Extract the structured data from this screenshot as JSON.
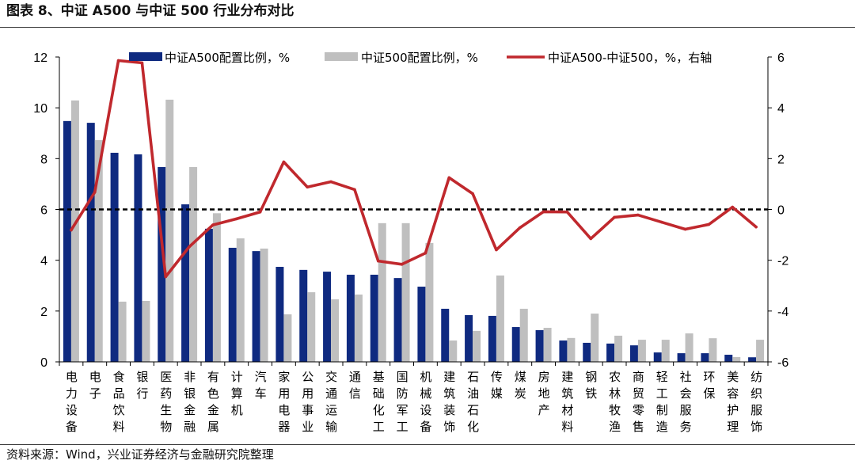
{
  "chart_data": {
    "type": "bar",
    "title": "图表 8、中证 A500 与中证 500 行业分布对比",
    "categories": [
      "电力设备",
      "电子",
      "食品饮料",
      "银行",
      "医药生物",
      "非银金融",
      "有色金属",
      "计算机",
      "汽车",
      "家用电器",
      "公用事业",
      "交通运输",
      "通信",
      "基础化工",
      "国防军工",
      "机械设备",
      "建筑装饰",
      "石油石化",
      "传媒",
      "煤炭",
      "房地产",
      "建筑材料",
      "钢铁",
      "农林牧渔",
      "商贸零售",
      "轻工制造",
      "社会服务",
      "环保",
      "美容护理",
      "纺织服饰"
    ],
    "series": [
      {
        "name": "中证A500配置比例，%",
        "type": "bar",
        "axis": "left",
        "color": "#0F2A80",
        "values": [
          9.48,
          9.41,
          8.23,
          8.17,
          7.67,
          6.2,
          5.24,
          4.49,
          4.36,
          3.74,
          3.62,
          3.55,
          3.43,
          3.43,
          3.3,
          2.96,
          2.09,
          1.84,
          1.81,
          1.37,
          1.25,
          0.84,
          0.75,
          0.72,
          0.65,
          0.37,
          0.34,
          0.34,
          0.28,
          0.18
        ]
      },
      {
        "name": "中证500配置比例，%",
        "type": "bar",
        "axis": "left",
        "color": "#BFBFBF",
        "values": [
          10.29,
          8.73,
          2.37,
          2.4,
          10.32,
          7.67,
          5.85,
          4.86,
          4.46,
          1.87,
          2.74,
          2.46,
          2.65,
          5.46,
          5.46,
          4.68,
          0.84,
          1.22,
          3.4,
          2.09,
          1.34,
          0.94,
          1.9,
          1.03,
          0.87,
          0.87,
          1.12,
          0.93,
          0.19,
          0.87
        ]
      },
      {
        "name": "中证A500-中证500，%，右轴",
        "type": "line",
        "axis": "right",
        "color": "#C0282D",
        "values": [
          -0.81,
          0.68,
          5.86,
          5.77,
          -2.65,
          -1.47,
          -0.61,
          -0.37,
          -0.1,
          1.87,
          0.88,
          1.09,
          0.78,
          -2.03,
          -2.16,
          -1.72,
          1.25,
          0.62,
          -1.59,
          -0.72,
          -0.09,
          -0.1,
          -1.15,
          -0.31,
          -0.22,
          -0.5,
          -0.78,
          -0.59,
          0.09,
          -0.69
        ]
      }
    ],
    "ylim": [
      0,
      12
    ],
    "yticks": [
      0,
      2,
      4,
      6,
      8,
      10,
      12
    ],
    "y2lim": [
      -6,
      6
    ],
    "y2ticks": [
      -6,
      -4,
      -2,
      0,
      2,
      4,
      6
    ],
    "reference_line": {
      "axis": "right",
      "value": 0,
      "style": "dashed",
      "color": "#000000"
    },
    "legend_position": "top",
    "grid": false
  },
  "footer": {
    "source": "资料来源：Wind，兴业证券经济与金融研究院整理"
  }
}
